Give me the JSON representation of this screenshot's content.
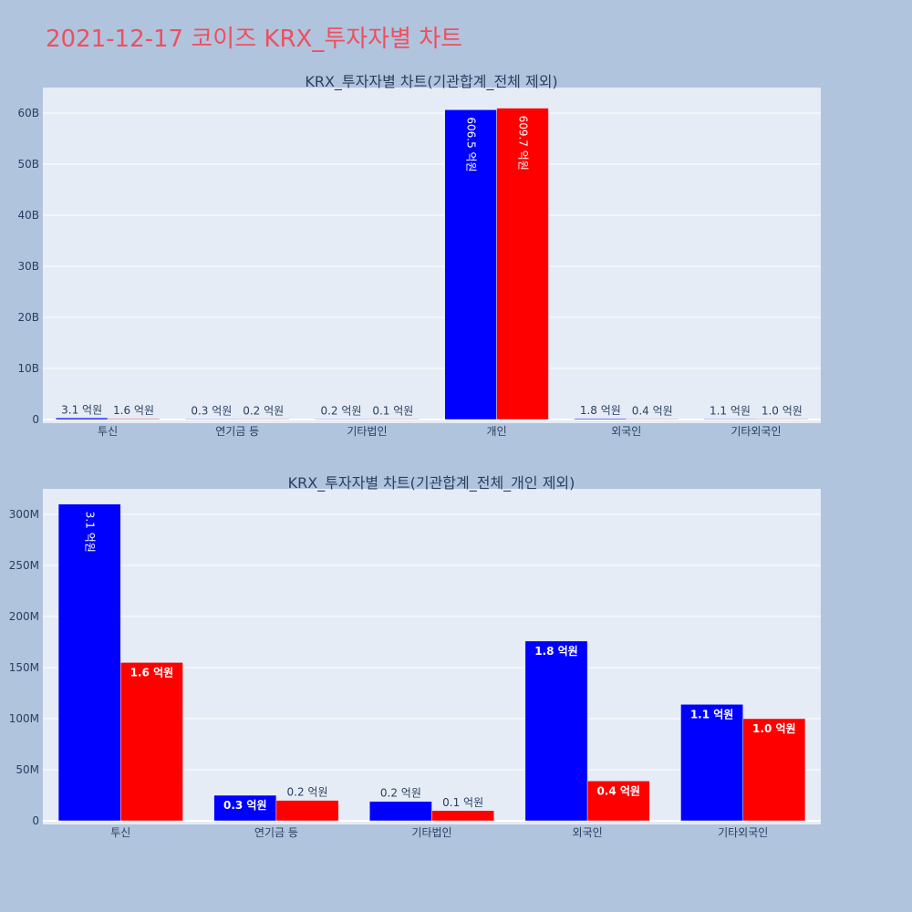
{
  "page_title": "2021-12-17 코이즈 KRX_투자자별 차트",
  "colors": {
    "series1": "#0000ff",
    "series2": "#ff0000",
    "background": "#b0c4de",
    "plot_bg": "#e5ecf6",
    "title": "#ef4f5f"
  },
  "chart_data": [
    {
      "type": "bar",
      "title": "KRX_투자자별 차트(기관합계_전체 제외)",
      "categories": [
        "투신",
        "연기금 등",
        "기타법인",
        "개인",
        "외국인",
        "기타외국인"
      ],
      "series": [
        {
          "values": [
            310000000,
            25000000,
            19000000,
            60650000000,
            176000000,
            114000000
          ],
          "labels": [
            "3.1 억원",
            "0.3 억원",
            "0.2 억원",
            "606.5 억원",
            "1.8 억원",
            "1.1 억원"
          ]
        },
        {
          "values": [
            155000000,
            20000000,
            10000000,
            60970000000,
            39000000,
            100000000
          ],
          "labels": [
            "1.6 억원",
            "0.2 억원",
            "0.1 억원",
            "609.7 억원",
            "0.4 억원",
            "1.0 억원"
          ]
        }
      ],
      "ylim": [
        0,
        65000000000
      ],
      "yticks": [
        0,
        10000000000,
        20000000000,
        30000000000,
        40000000000,
        50000000000,
        60000000000
      ],
      "ytick_labels": [
        "0",
        "10B",
        "20B",
        "30B",
        "40B",
        "50B",
        "60B"
      ],
      "grid": true
    },
    {
      "type": "bar",
      "title": "KRX_투자자별 차트(기관합계_전체_개인 제외)",
      "categories": [
        "투신",
        "연기금 등",
        "기타법인",
        "외국인",
        "기타외국인"
      ],
      "series": [
        {
          "values": [
            310000000,
            25000000,
            19000000,
            176000000,
            114000000
          ],
          "labels": [
            "3.1 억원",
            "0.3 억원",
            "0.2 억원",
            "1.8 억원",
            "1.1 억원"
          ]
        },
        {
          "values": [
            155000000,
            20000000,
            10000000,
            39000000,
            100000000
          ],
          "labels": [
            "1.6 억원",
            "0.2 억원",
            "0.1 억원",
            "0.4 억원",
            "1.0 억원"
          ]
        }
      ],
      "ylim": [
        0,
        325000000
      ],
      "yticks": [
        0,
        50000000,
        100000000,
        150000000,
        200000000,
        250000000,
        300000000
      ],
      "ytick_labels": [
        "0",
        "50M",
        "100M",
        "150M",
        "200M",
        "250M",
        "300M"
      ],
      "grid": true
    }
  ]
}
